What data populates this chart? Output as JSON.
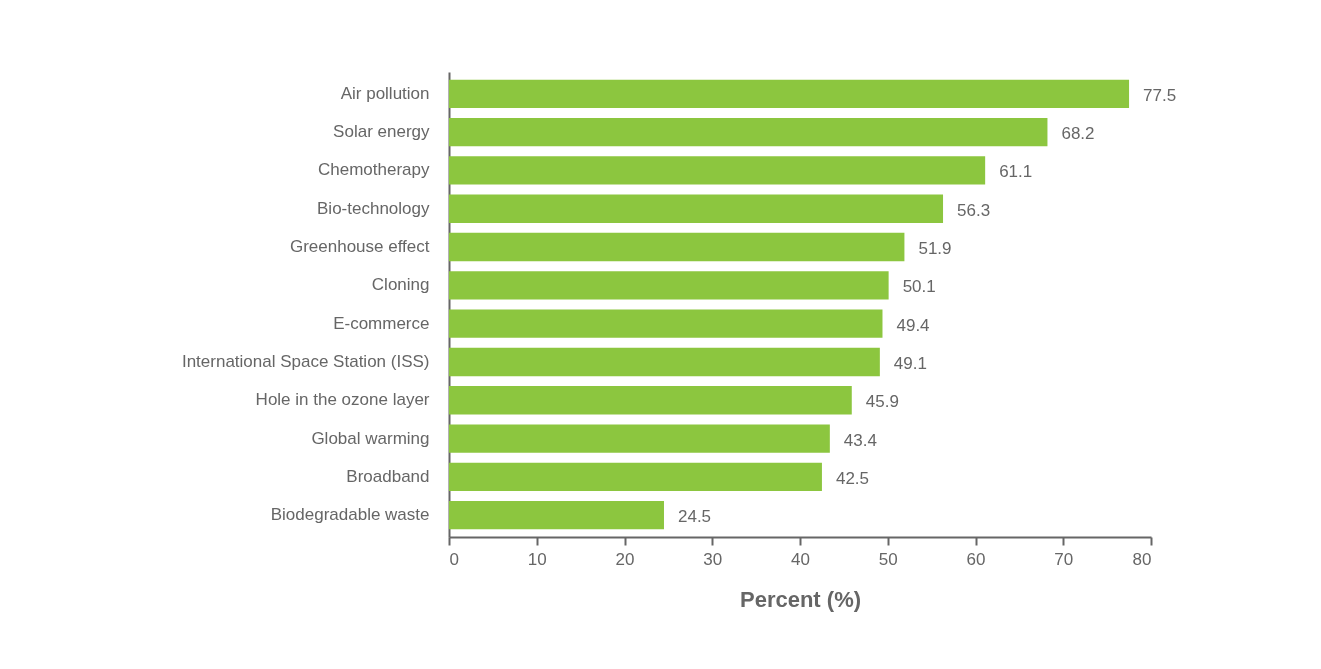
{
  "chart_data": {
    "type": "bar",
    "orientation": "horizontal",
    "xlabel": "Percent (%)",
    "categories": [
      "Air pollution",
      "Solar energy",
      "Chemotherapy",
      "Bio-technology",
      "Greenhouse effect",
      "Cloning",
      "E-commerce",
      "International Space Station (ISS)",
      "Hole in the ozone layer",
      "Global warming",
      "Broadband",
      "Biodegradable waste"
    ],
    "values": [
      77.5,
      68.2,
      61.1,
      56.3,
      51.9,
      50.1,
      49.4,
      49.1,
      45.9,
      43.4,
      42.5,
      24.5
    ],
    "color": "#8cc63f",
    "xlim": [
      0,
      80
    ],
    "xticks": [
      0,
      10,
      20,
      30,
      40,
      50,
      60,
      70,
      80
    ],
    "data_labels": true,
    "grid": false
  }
}
